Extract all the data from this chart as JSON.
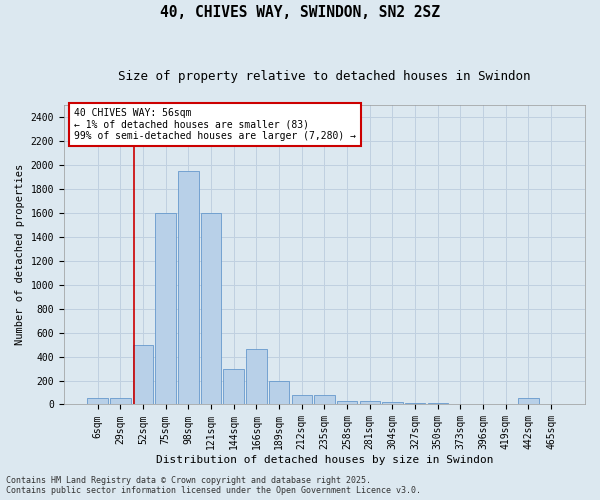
{
  "title1": "40, CHIVES WAY, SWINDON, SN2 2SZ",
  "title2": "Size of property relative to detached houses in Swindon",
  "xlabel": "Distribution of detached houses by size in Swindon",
  "ylabel": "Number of detached properties",
  "categories": [
    "6sqm",
    "29sqm",
    "52sqm",
    "75sqm",
    "98sqm",
    "121sqm",
    "144sqm",
    "166sqm",
    "189sqm",
    "212sqm",
    "235sqm",
    "258sqm",
    "281sqm",
    "304sqm",
    "327sqm",
    "350sqm",
    "373sqm",
    "396sqm",
    "419sqm",
    "442sqm",
    "465sqm"
  ],
  "values": [
    50,
    50,
    500,
    1600,
    1950,
    1600,
    300,
    460,
    200,
    80,
    80,
    30,
    30,
    20,
    10,
    10,
    0,
    0,
    0,
    50,
    0
  ],
  "bar_color": "#b8d0e8",
  "bar_edge_color": "#6699cc",
  "grid_color": "#c0d0e0",
  "background_color": "#dce8f0",
  "vline_color": "#cc0000",
  "annotation_text": "40 CHIVES WAY: 56sqm\n← 1% of detached houses are smaller (83)\n99% of semi-detached houses are larger (7,280) →",
  "annotation_box_color": "#ffffff",
  "annotation_box_edge": "#cc0000",
  "ylim": [
    0,
    2500
  ],
  "yticks": [
    0,
    200,
    400,
    600,
    800,
    1000,
    1200,
    1400,
    1600,
    1800,
    2000,
    2200,
    2400
  ],
  "footer": "Contains HM Land Registry data © Crown copyright and database right 2025.\nContains public sector information licensed under the Open Government Licence v3.0.",
  "title1_fontsize": 10.5,
  "title2_fontsize": 9,
  "xlabel_fontsize": 8,
  "ylabel_fontsize": 7.5,
  "tick_fontsize": 7,
  "footer_fontsize": 6,
  "annotation_fontsize": 7
}
